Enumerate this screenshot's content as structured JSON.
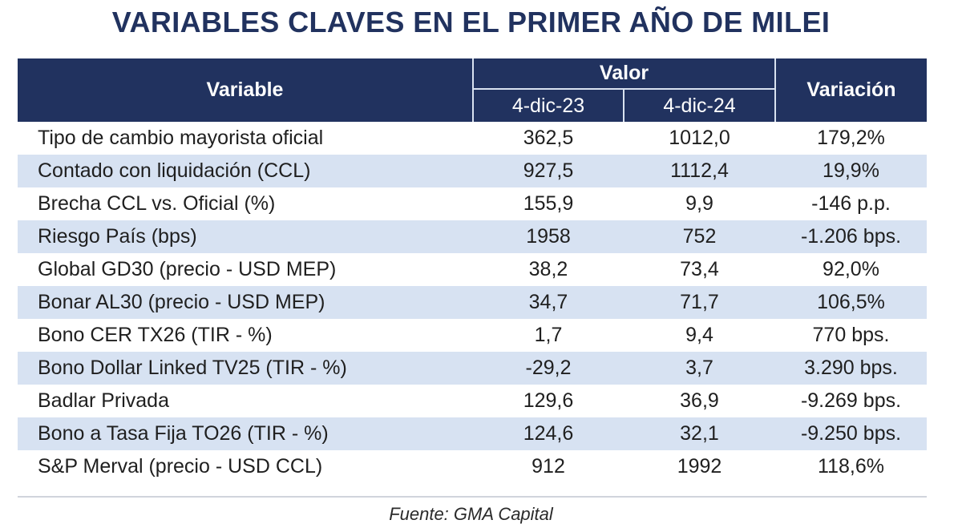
{
  "title": "VARIABLES CLAVES EN EL PRIMER AÑO DE MILEI",
  "header": {
    "variable": "Variable",
    "valor": "Valor",
    "date1": "4-dic-23",
    "date2": "4-dic-24",
    "variacion": "Variación"
  },
  "rows": [
    {
      "name": "Tipo de cambio mayorista oficial",
      "v1": "362,5",
      "v2": "1012,0",
      "var": "179,2%"
    },
    {
      "name": "Contado con liquidación (CCL)",
      "v1": "927,5",
      "v2": "1112,4",
      "var": "19,9%"
    },
    {
      "name": "Brecha CCL vs. Oficial (%)",
      "v1": "155,9",
      "v2": "9,9",
      "var": "-146 p.p."
    },
    {
      "name": "Riesgo País (bps)",
      "v1": "1958",
      "v2": "752",
      "var": "-1.206 bps."
    },
    {
      "name": "Global GD30 (precio - USD MEP)",
      "v1": "38,2",
      "v2": "73,4",
      "var": "92,0%"
    },
    {
      "name": "Bonar AL30 (precio - USD MEP)",
      "v1": "34,7",
      "v2": "71,7",
      "var": "106,5%"
    },
    {
      "name": "Bono CER TX26 (TIR - %)",
      "v1": "1,7",
      "v2": "9,4",
      "var": "770 bps."
    },
    {
      "name": "Bono Dollar Linked TV25 (TIR - %)",
      "v1": "-29,2",
      "v2": "3,7",
      "var": "3.290 bps."
    },
    {
      "name": "Badlar Privada",
      "v1": "129,6",
      "v2": "36,9",
      "var": "-9.269 bps."
    },
    {
      "name": "Bono a Tasa Fija TO26 (TIR - %)",
      "v1": "124,6",
      "v2": "32,1",
      "var": "-9.250 bps."
    },
    {
      "name": "S&P Merval (precio - USD CCL)",
      "v1": "912",
      "v2": "1992",
      "var": "118,6%"
    }
  ],
  "source": "Fuente: GMA Capital",
  "colors": {
    "header_bg": "#21325f",
    "title": "#21325f",
    "alt_row_bg": "#d7e2f2"
  }
}
